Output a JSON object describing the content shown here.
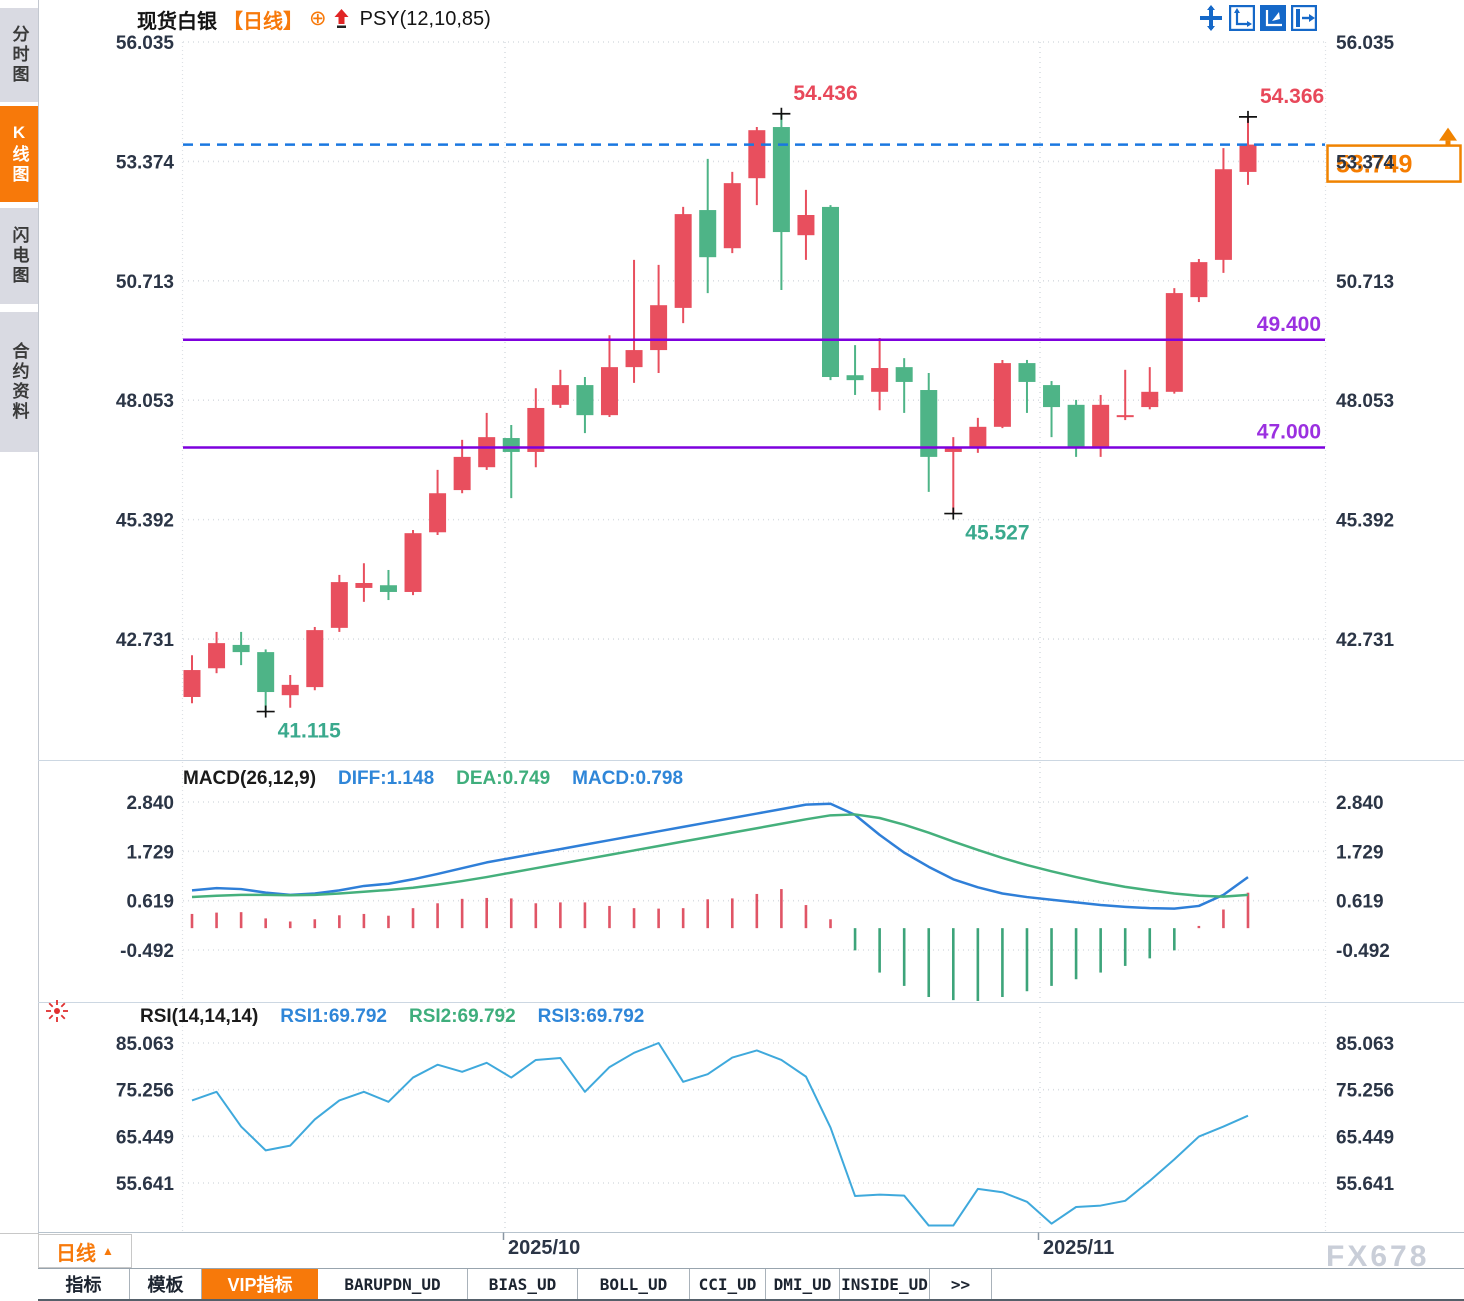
{
  "header": {
    "symbol": "现货白银",
    "period_bracket": "【日线】",
    "overlay_icon": "⊕",
    "indicator_label": "PSY(12,10,85)"
  },
  "sidebar": {
    "tabs": [
      {
        "label": "分时图",
        "active": false
      },
      {
        "label": "K线图",
        "active": true
      },
      {
        "label": "闪电图",
        "active": false
      },
      {
        "label": "合约资料",
        "active": false
      }
    ]
  },
  "toolbar": {
    "icons": [
      "pan-move",
      "axes-zoom",
      "chart-mode-active",
      "collapse-panel"
    ]
  },
  "macd_header": {
    "name": "MACD(26,12,9)",
    "diff": "DIFF:1.148",
    "dea": "DEA:0.749",
    "macd": "MACD:0.798"
  },
  "rsi_header": {
    "name": "RSI(14,14,14)",
    "rsi1": "RSI1:69.792",
    "rsi2": "RSI2:69.792",
    "rsi3": "RSI3:69.792"
  },
  "bottom_bar": {
    "period": "日线",
    "period_arrow": "▲",
    "dates": [
      "2025/10",
      "2025/11"
    ]
  },
  "tabs": [
    {
      "label": "指标",
      "active": false,
      "mono": false
    },
    {
      "label": "模板",
      "active": false,
      "mono": false
    },
    {
      "label": "VIP指标",
      "active": true,
      "mono": false
    },
    {
      "label": "BARUPDN_UD",
      "active": false,
      "mono": true
    },
    {
      "label": "BIAS_UD",
      "active": false,
      "mono": true
    },
    {
      "label": "BOLL_UD",
      "active": false,
      "mono": true
    },
    {
      "label": "CCI_UD",
      "active": false,
      "mono": true
    },
    {
      "label": "DMI_UD",
      "active": false,
      "mono": true
    },
    {
      "label": "INSIDE_UD",
      "active": false,
      "mono": true
    },
    {
      "label": ">>",
      "active": false,
      "mono": true
    }
  ],
  "watermark": "FX678",
  "price_tag": {
    "label": "53.749"
  },
  "colors": {
    "up": "#e84f5e",
    "down": "#4eb487",
    "hist_up": "#e05566",
    "hist_down": "#3da47a",
    "purple_line": "#7d00dd",
    "label_purple": "#9b30e0",
    "dashed_line": "#1a78e0",
    "orange": "#f57c00",
    "tag_border": "#f08300",
    "diff_line": "#2f7fd8",
    "dea_line": "#45b07c",
    "rsi_line": "#3fa9dc",
    "label_red": "#e8485a",
    "label_green": "#3aa98d",
    "axis_text": "#2b3546",
    "grid": "#d9dde2"
  },
  "chart_data": [
    {
      "type": "candlestick",
      "title": "现货白银 日线",
      "ylabel": "price",
      "y_ticks": [
        56.035,
        53.374,
        50.713,
        48.053,
        45.392,
        42.731
      ],
      "y_tick_labels": [
        "56.035",
        "53.374",
        "50.713",
        "48.053",
        "45.392",
        "42.731"
      ],
      "x_labels": [
        "2025/10",
        "2025/11"
      ],
      "grid": true,
      "candles": [
        [
          41.44,
          42.37,
          41.3,
          42.04
        ],
        [
          42.08,
          42.89,
          41.97,
          42.64
        ],
        [
          42.6,
          42.89,
          42.15,
          42.44
        ],
        [
          42.44,
          42.5,
          41.115,
          41.55
        ],
        [
          41.48,
          41.93,
          41.2,
          41.71
        ],
        [
          41.66,
          43.0,
          41.59,
          42.93
        ],
        [
          42.98,
          44.16,
          42.89,
          44.0
        ],
        [
          43.87,
          44.42,
          43.56,
          43.98
        ],
        [
          43.93,
          44.27,
          43.6,
          43.78
        ],
        [
          43.78,
          45.16,
          43.71,
          45.09
        ],
        [
          45.11,
          46.5,
          45.05,
          45.98
        ],
        [
          46.05,
          47.17,
          45.98,
          46.79
        ],
        [
          46.56,
          47.77,
          46.5,
          47.23
        ],
        [
          47.21,
          47.5,
          45.87,
          46.9
        ],
        [
          46.9,
          48.32,
          46.56,
          47.88
        ],
        [
          47.95,
          48.73,
          47.88,
          48.39
        ],
        [
          48.39,
          48.57,
          47.32,
          47.72
        ],
        [
          47.72,
          49.5,
          47.68,
          48.79
        ],
        [
          48.79,
          51.18,
          48.44,
          49.17
        ],
        [
          49.17,
          51.07,
          48.66,
          50.17
        ],
        [
          50.11,
          52.36,
          49.77,
          52.2
        ],
        [
          52.29,
          53.43,
          50.44,
          51.24
        ],
        [
          51.44,
          53.14,
          51.33,
          52.89
        ],
        [
          53.0,
          54.14,
          52.4,
          54.07
        ],
        [
          54.14,
          54.436,
          50.51,
          51.8
        ],
        [
          51.73,
          52.74,
          51.18,
          52.18
        ],
        [
          52.36,
          52.4,
          48.5,
          48.57
        ],
        [
          48.61,
          49.28,
          48.17,
          48.5
        ],
        [
          48.24,
          49.44,
          47.83,
          48.77
        ],
        [
          48.79,
          48.99,
          47.77,
          48.46
        ],
        [
          48.28,
          48.66,
          46.01,
          46.79
        ],
        [
          46.9,
          47.23,
          45.527,
          46.99
        ],
        [
          46.99,
          47.66,
          46.88,
          47.46
        ],
        [
          47.46,
          48.95,
          47.43,
          48.88
        ],
        [
          48.88,
          48.95,
          47.77,
          48.46
        ],
        [
          48.39,
          48.48,
          47.23,
          47.9
        ],
        [
          47.95,
          48.06,
          46.79,
          47.01
        ],
        [
          47.01,
          48.17,
          46.79,
          47.95
        ],
        [
          47.68,
          48.73,
          47.61,
          47.72
        ],
        [
          47.9,
          48.79,
          47.85,
          48.24
        ],
        [
          48.24,
          50.55,
          48.2,
          50.44
        ],
        [
          50.35,
          51.2,
          50.24,
          51.13
        ],
        [
          51.18,
          53.67,
          50.89,
          53.2
        ],
        [
          53.14,
          54.366,
          52.85,
          53.749
        ]
      ],
      "hlines": [
        {
          "label": "49.400",
          "value": 49.4
        },
        {
          "label": "47.000",
          "value": 47.0
        }
      ],
      "last_price": {
        "label": "53.749",
        "value": 53.749
      },
      "annotations": [
        {
          "text": "54.436",
          "candle": 24,
          "pos": "high",
          "color": "red"
        },
        {
          "text": "54.366",
          "candle": 43,
          "pos": "high",
          "color": "red"
        },
        {
          "text": "41.115",
          "candle": 3,
          "pos": "low",
          "color": "green"
        },
        {
          "text": "45.527",
          "candle": 31,
          "pos": "low",
          "color": "green"
        }
      ]
    },
    {
      "type": "bar",
      "title": "MACD(26,12,9)",
      "y_ticks": [
        2.84,
        1.729,
        0.619,
        -0.492
      ],
      "y_tick_labels": [
        "2.840",
        "1.729",
        "0.619",
        "-0.492"
      ],
      "hist": [
        0.32,
        0.35,
        0.36,
        0.22,
        0.15,
        0.2,
        0.29,
        0.32,
        0.28,
        0.45,
        0.56,
        0.66,
        0.68,
        0.67,
        0.56,
        0.58,
        0.58,
        0.5,
        0.45,
        0.44,
        0.45,
        0.65,
        0.67,
        0.77,
        0.88,
        0.52,
        0.2,
        -0.5,
        -1.0,
        -1.3,
        -1.55,
        -1.62,
        -1.64,
        -1.55,
        -1.42,
        -1.3,
        -1.15,
        -1.0,
        -0.85,
        -0.68,
        -0.5,
        0.05,
        0.42,
        0.798
      ],
      "series": [
        {
          "name": "DIFF",
          "values": [
            0.85,
            0.9,
            0.88,
            0.8,
            0.75,
            0.78,
            0.85,
            0.95,
            1.0,
            1.1,
            1.22,
            1.35,
            1.48,
            1.58,
            1.68,
            1.78,
            1.88,
            1.98,
            2.08,
            2.18,
            2.28,
            2.38,
            2.48,
            2.58,
            2.68,
            2.78,
            2.8,
            2.55,
            2.1,
            1.7,
            1.38,
            1.1,
            0.92,
            0.78,
            0.7,
            0.64,
            0.58,
            0.52,
            0.48,
            0.45,
            0.44,
            0.5,
            0.75,
            1.148
          ]
        },
        {
          "name": "DEA",
          "values": [
            0.7,
            0.73,
            0.75,
            0.75,
            0.74,
            0.75,
            0.78,
            0.82,
            0.86,
            0.91,
            0.98,
            1.06,
            1.15,
            1.25,
            1.35,
            1.45,
            1.55,
            1.65,
            1.75,
            1.85,
            1.95,
            2.05,
            2.15,
            2.25,
            2.35,
            2.45,
            2.54,
            2.56,
            2.48,
            2.33,
            2.15,
            1.95,
            1.76,
            1.58,
            1.42,
            1.28,
            1.15,
            1.03,
            0.93,
            0.85,
            0.78,
            0.73,
            0.71,
            0.749
          ]
        }
      ]
    },
    {
      "type": "line",
      "title": "RSI(14,14,14)",
      "y_ticks": [
        85.063,
        75.256,
        65.449,
        55.641
      ],
      "y_tick_labels": [
        "85.063",
        "75.256",
        "65.449",
        "55.641"
      ],
      "values": [
        73.0,
        74.8,
        67.5,
        62.5,
        63.5,
        69.0,
        73.0,
        74.8,
        72.7,
        77.8,
        80.5,
        79.0,
        80.9,
        77.8,
        81.5,
        81.9,
        74.8,
        80.0,
        83.0,
        85.063,
        76.9,
        78.5,
        82.0,
        83.5,
        81.5,
        78.0,
        67.3,
        52.9,
        53.2,
        53.0,
        46.7,
        46.7,
        54.4,
        53.7,
        51.7,
        47.1,
        50.6,
        50.9,
        51.9,
        56.1,
        60.6,
        65.4,
        67.5,
        69.792
      ]
    }
  ]
}
